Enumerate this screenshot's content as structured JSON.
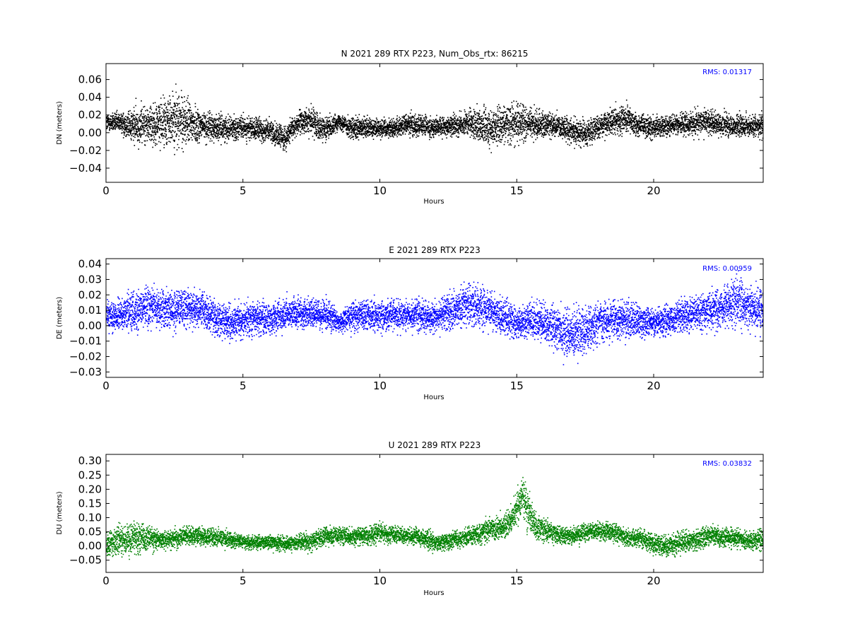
{
  "chart_data": [
    {
      "type": "scatter",
      "title": "N 2021 289 RTX  P223, Num_Obs_rtx: 86215",
      "xlabel": "Hours",
      "ylabel": "DN (meters)",
      "xlim": [
        0,
        24
      ],
      "ylim": [
        -0.056,
        0.078
      ],
      "xticks": [
        0,
        5,
        10,
        15,
        20
      ],
      "yticks": [
        -0.04,
        -0.02,
        0.0,
        0.02,
        0.04,
        0.06
      ],
      "ytick_labels": [
        "−0.04",
        "−0.02",
        "0.00",
        "0.02",
        "0.04",
        "0.06"
      ],
      "color": "#000000",
      "annotation": "RMS:  0.01317",
      "annotation_color": "#0000ff",
      "grid": false,
      "legend": "none",
      "n_points": 86215,
      "series": [
        {
          "x": [
            0,
            0.5,
            1,
            1.5,
            2,
            2.5,
            3,
            3.5,
            4,
            4.5,
            5,
            5.5,
            6,
            6.5,
            7,
            7.5,
            8,
            8.5,
            9,
            9.5,
            10,
            10.5,
            11,
            11.5,
            12,
            12.5,
            13,
            13.5,
            14,
            14.5,
            15,
            15.5,
            16,
            16.5,
            17,
            17.5,
            18,
            18.5,
            19,
            19.5,
            20,
            20.5,
            21,
            21.5,
            22,
            22.5,
            23,
            23.5,
            24
          ],
          "mean": [
            0.012,
            0.012,
            0.008,
            0.01,
            0.012,
            0.015,
            0.012,
            0.008,
            0.006,
            0.006,
            0.006,
            0.004,
            0.002,
            -0.006,
            0.012,
            0.014,
            0.004,
            0.014,
            0.004,
            0.006,
            0.006,
            0.006,
            0.01,
            0.008,
            0.007,
            0.008,
            0.01,
            0.01,
            0.006,
            0.01,
            0.012,
            0.01,
            0.01,
            0.008,
            0.003,
            0.0,
            0.008,
            0.014,
            0.016,
            0.008,
            0.006,
            0.008,
            0.01,
            0.012,
            0.012,
            0.01,
            0.008,
            0.008,
            0.008
          ],
          "spread": [
            0.01,
            0.01,
            0.02,
            0.02,
            0.024,
            0.03,
            0.024,
            0.016,
            0.014,
            0.012,
            0.012,
            0.012,
            0.012,
            0.012,
            0.012,
            0.014,
            0.012,
            0.008,
            0.012,
            0.012,
            0.01,
            0.01,
            0.012,
            0.012,
            0.01,
            0.01,
            0.012,
            0.016,
            0.02,
            0.018,
            0.022,
            0.016,
            0.014,
            0.012,
            0.014,
            0.014,
            0.012,
            0.014,
            0.014,
            0.012,
            0.012,
            0.012,
            0.012,
            0.012,
            0.014,
            0.012,
            0.012,
            0.012,
            0.012
          ]
        }
      ]
    },
    {
      "type": "scatter",
      "title": "E 2021 289 RTX  P223",
      "xlabel": "Hours",
      "ylabel": "DE (meters)",
      "xlim": [
        0,
        24
      ],
      "ylim": [
        -0.0335,
        0.0435
      ],
      "xticks": [
        0,
        5,
        10,
        15,
        20
      ],
      "yticks": [
        -0.03,
        -0.02,
        -0.01,
        0.0,
        0.01,
        0.02,
        0.03,
        0.04
      ],
      "ytick_labels": [
        "−0.03",
        "−0.02",
        "−0.01",
        "0.00",
        "0.01",
        "0.02",
        "0.03",
        "0.04"
      ],
      "color": "#0000ff",
      "annotation": "RMS:  0.00959",
      "annotation_color": "#0000ff",
      "grid": false,
      "legend": "none",
      "series": [
        {
          "x": [
            0,
            0.5,
            1,
            1.5,
            2,
            2.5,
            3,
            3.5,
            4,
            4.5,
            5,
            5.5,
            6,
            6.5,
            7,
            7.5,
            8,
            8.5,
            9,
            9.5,
            10,
            10.5,
            11,
            11.5,
            12,
            12.5,
            13,
            13.5,
            14,
            14.5,
            15,
            15.5,
            16,
            16.5,
            17,
            17.5,
            18,
            18.5,
            19,
            19.5,
            20,
            20.5,
            21,
            21.5,
            22,
            22.5,
            23,
            23.5,
            24
          ],
          "mean": [
            0.007,
            0.007,
            0.009,
            0.012,
            0.011,
            0.011,
            0.012,
            0.011,
            0.004,
            0.003,
            0.004,
            0.005,
            0.004,
            0.008,
            0.008,
            0.008,
            0.008,
            0.002,
            0.007,
            0.007,
            0.007,
            0.007,
            0.007,
            0.007,
            0.006,
            0.009,
            0.013,
            0.014,
            0.01,
            0.006,
            0.002,
            0.004,
            0.002,
            -0.002,
            -0.006,
            -0.002,
            0.003,
            0.004,
            0.004,
            0.003,
            0.002,
            0.004,
            0.007,
            0.008,
            0.01,
            0.012,
            0.016,
            0.012,
            0.01
          ],
          "spread": [
            0.009,
            0.009,
            0.013,
            0.012,
            0.011,
            0.012,
            0.012,
            0.011,
            0.011,
            0.01,
            0.01,
            0.01,
            0.01,
            0.009,
            0.009,
            0.009,
            0.009,
            0.006,
            0.009,
            0.009,
            0.009,
            0.009,
            0.009,
            0.009,
            0.009,
            0.01,
            0.012,
            0.013,
            0.012,
            0.011,
            0.009,
            0.012,
            0.012,
            0.014,
            0.016,
            0.014,
            0.012,
            0.012,
            0.011,
            0.01,
            0.008,
            0.009,
            0.01,
            0.011,
            0.012,
            0.013,
            0.014,
            0.013,
            0.012
          ]
        }
      ]
    },
    {
      "type": "scatter",
      "title": "U 2021 289 RTX  P223",
      "xlabel": "Hours",
      "ylabel": "DU (meters)",
      "xlim": [
        0,
        24
      ],
      "ylim": [
        -0.093,
        0.323
      ],
      "xticks": [
        0,
        5,
        10,
        15,
        20
      ],
      "yticks": [
        -0.05,
        0.0,
        0.05,
        0.1,
        0.15,
        0.2,
        0.25,
        0.3
      ],
      "ytick_labels": [
        "−0.05",
        "0.00",
        "0.05",
        "0.10",
        "0.15",
        "0.20",
        "0.25",
        "0.30"
      ],
      "color": "#008000",
      "annotation": "RMS:  0.03832",
      "annotation_color": "#0000ff",
      "grid": false,
      "legend": "none",
      "series": [
        {
          "x": [
            0,
            0.5,
            1,
            1.5,
            2,
            2.5,
            3,
            3.5,
            4,
            4.5,
            5,
            5.5,
            6,
            6.5,
            7,
            7.5,
            8,
            8.5,
            9,
            9.5,
            10,
            10.5,
            11,
            11.5,
            12,
            12.5,
            13,
            13.5,
            14,
            14.5,
            14.8,
            15,
            15.2,
            15.4,
            15.7,
            16,
            16.5,
            17,
            17.5,
            18,
            18.5,
            19,
            19.5,
            20,
            20.5,
            21,
            21.5,
            22,
            22.5,
            23,
            23.5,
            24
          ],
          "mean": [
            0.01,
            0.02,
            0.03,
            0.03,
            0.02,
            0.03,
            0.04,
            0.035,
            0.03,
            0.025,
            0.015,
            0.015,
            0.015,
            0.01,
            0.015,
            0.02,
            0.035,
            0.04,
            0.035,
            0.04,
            0.05,
            0.04,
            0.04,
            0.03,
            0.01,
            0.02,
            0.03,
            0.04,
            0.06,
            0.07,
            0.09,
            0.13,
            0.18,
            0.12,
            0.07,
            0.06,
            0.04,
            0.035,
            0.05,
            0.055,
            0.05,
            0.03,
            0.03,
            0.01,
            0.0,
            0.015,
            0.02,
            0.04,
            0.03,
            0.03,
            0.02,
            0.025
          ],
          "spread": [
            0.04,
            0.05,
            0.05,
            0.04,
            0.03,
            0.03,
            0.03,
            0.03,
            0.03,
            0.025,
            0.025,
            0.025,
            0.025,
            0.025,
            0.025,
            0.03,
            0.03,
            0.03,
            0.03,
            0.03,
            0.035,
            0.03,
            0.03,
            0.03,
            0.035,
            0.03,
            0.03,
            0.035,
            0.035,
            0.04,
            0.045,
            0.06,
            0.07,
            0.06,
            0.045,
            0.035,
            0.03,
            0.03,
            0.03,
            0.03,
            0.03,
            0.03,
            0.03,
            0.035,
            0.035,
            0.035,
            0.035,
            0.035,
            0.03,
            0.03,
            0.03,
            0.035
          ]
        }
      ]
    }
  ]
}
